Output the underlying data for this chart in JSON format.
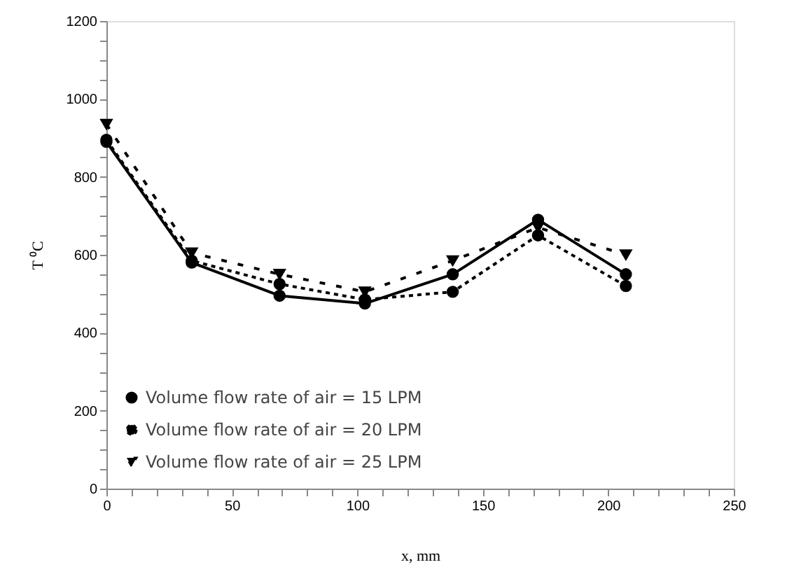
{
  "chart_data": {
    "type": "line",
    "xlabel": "x, mm",
    "ylabel": "T ⁰C",
    "x": [
      0,
      34,
      69,
      103,
      138,
      172,
      207
    ],
    "series": [
      {
        "name": "Volume flow rate of air = 15 LPM",
        "color": "#000000",
        "marker": "circle",
        "line_style": "solid",
        "values": [
          890,
          580,
          495,
          475,
          550,
          690,
          550
        ]
      },
      {
        "name": "Volume flow rate of air = 20 LPM",
        "color": "#000000",
        "marker": "circle",
        "line_style": "dotted",
        "values": [
          895,
          585,
          525,
          485,
          505,
          650,
          520
        ]
      },
      {
        "name": "Volume flow rate of air = 25 LPM",
        "color": "#000000",
        "marker": "triangle-down",
        "line_style": "dashed",
        "values": [
          935,
          605,
          550,
          505,
          585,
          670,
          600
        ]
      }
    ],
    "xlim": [
      0,
      250
    ],
    "xticks": [
      0,
      {
        "value": 10,
        "label": null
      },
      {
        "value": 20,
        "label": null
      },
      {
        "value": 30,
        "label": null
      },
      {
        "value": 40,
        "label": null
      },
      50,
      {
        "value": 60,
        "label": null
      },
      {
        "value": 70,
        "label": null
      },
      {
        "value": 80,
        "label": null
      },
      {
        "value": 90,
        "label": null
      },
      100,
      {
        "value": 110,
        "label": null
      },
      {
        "value": 120,
        "label": null
      },
      {
        "value": 130,
        "label": null
      },
      {
        "value": 140,
        "label": null
      },
      150,
      {
        "value": 160,
        "label": null
      },
      {
        "value": 170,
        "label": null
      },
      {
        "value": 180,
        "label": null
      },
      {
        "value": 190,
        "label": null
      },
      200,
      {
        "value": 210,
        "label": null
      },
      {
        "value": 220,
        "label": null
      },
      {
        "value": 230,
        "label": null
      },
      {
        "value": 240,
        "label": null
      },
      250
    ],
    "ylim": [
      0,
      1200
    ],
    "yticks": [
      0,
      {
        "value": 50,
        "label": null
      },
      {
        "value": 100,
        "label": null
      },
      {
        "value": 150,
        "label": null
      },
      200,
      {
        "value": 250,
        "label": null
      },
      {
        "value": 300,
        "label": null
      },
      {
        "value": 350,
        "label": null
      },
      400,
      {
        "value": 450,
        "label": null
      },
      {
        "value": 500,
        "label": null
      },
      {
        "value": 550,
        "label": null
      },
      600,
      {
        "value": 650,
        "label": null
      },
      {
        "value": 700,
        "label": null
      },
      {
        "value": 750,
        "label": null
      },
      800,
      {
        "value": 850,
        "label": null
      },
      {
        "value": 900,
        "label": null
      },
      {
        "value": 950,
        "label": null
      },
      1000,
      {
        "value": 1050,
        "label": null
      },
      {
        "value": 1100,
        "label": null
      },
      {
        "value": 1150,
        "label": null
      },
      1200
    ],
    "grid": false,
    "legend": "bottom left"
  }
}
